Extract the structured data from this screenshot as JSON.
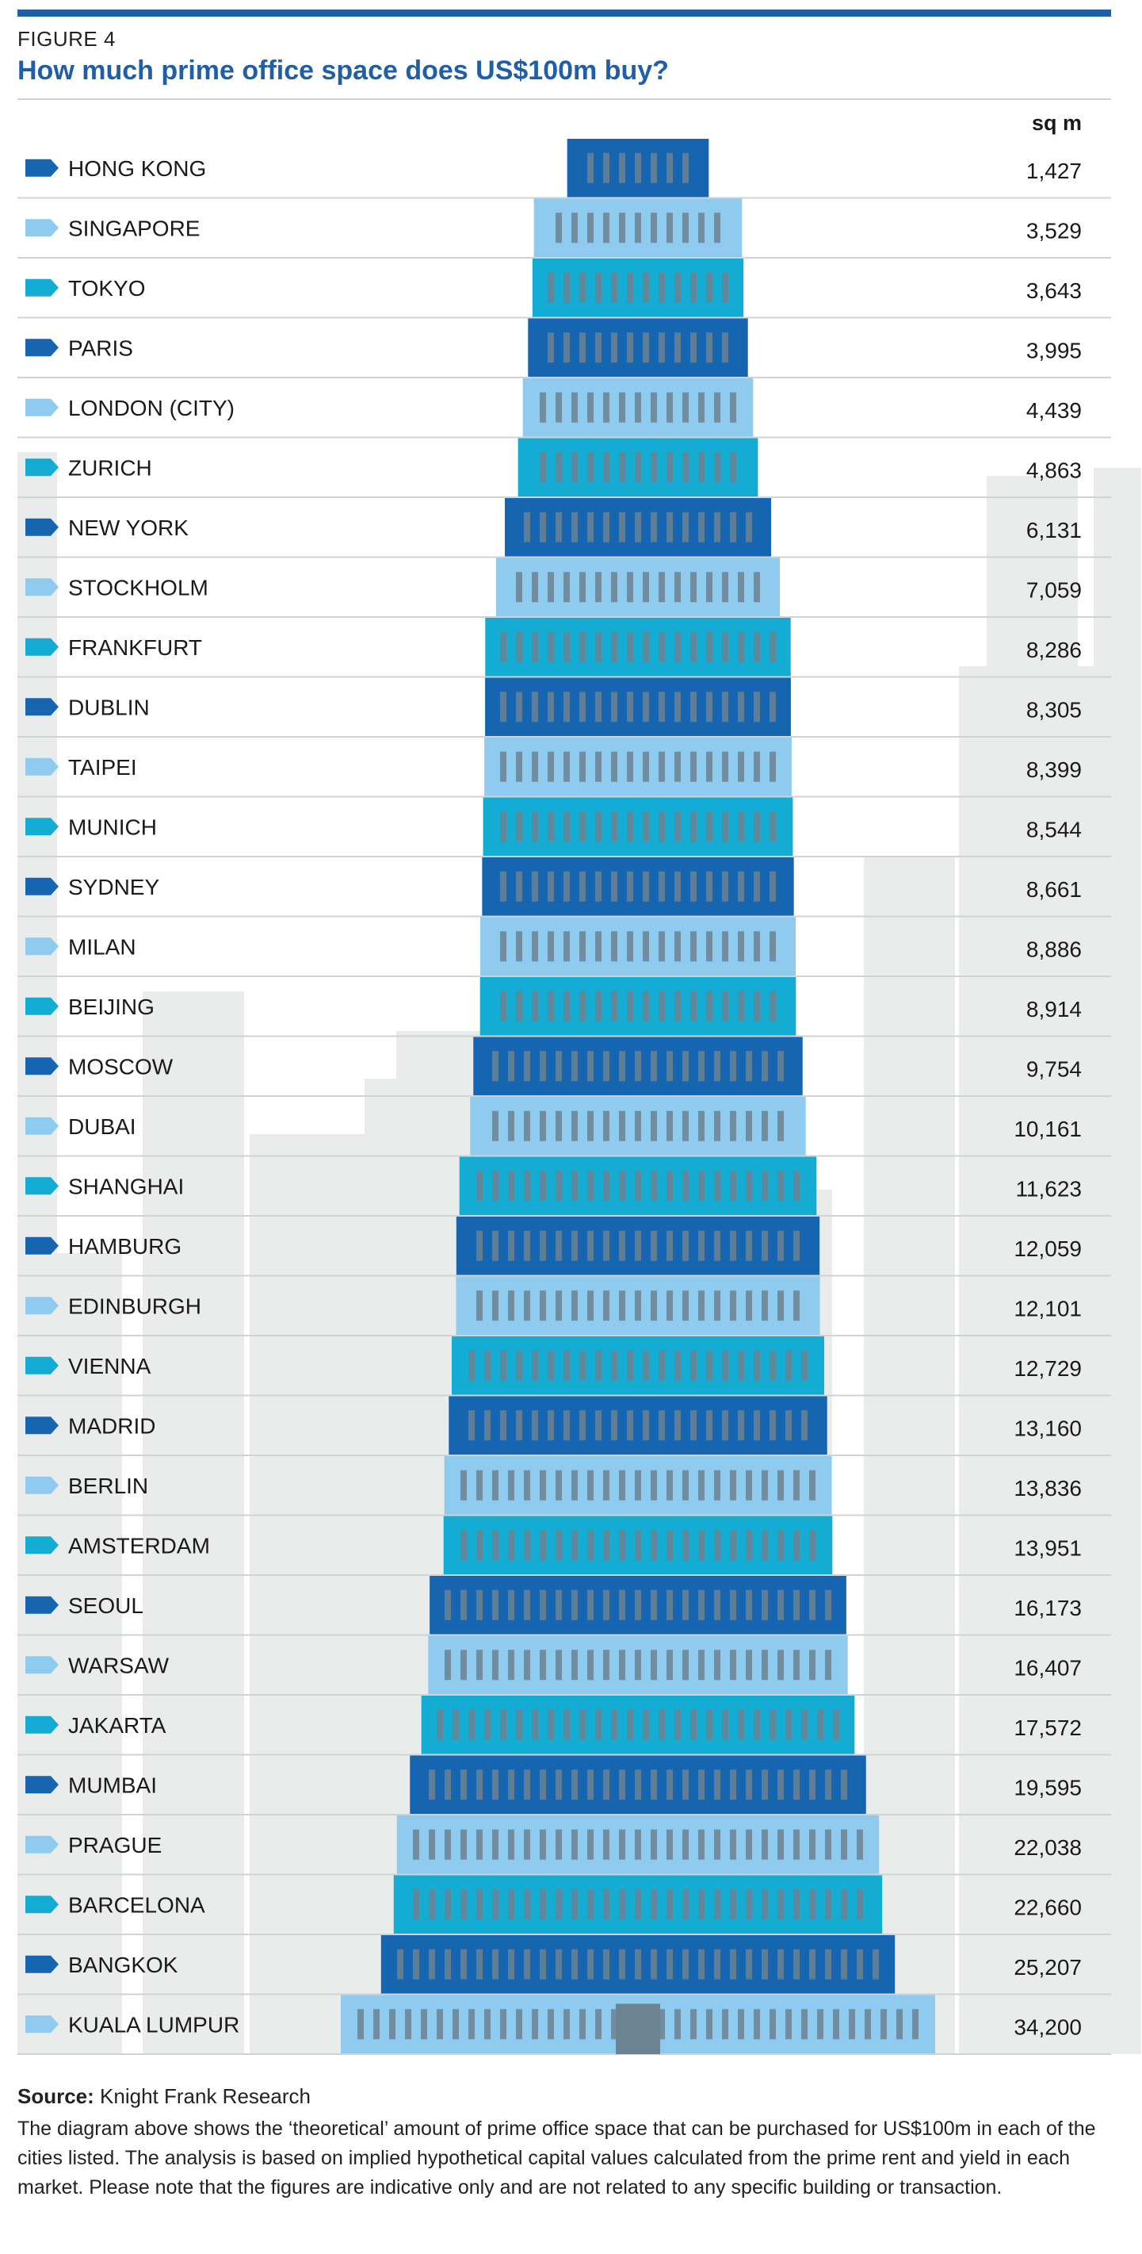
{
  "figure_label": "FIGURE 4",
  "title": "How much prime office space does US$100m buy?",
  "unit_label": "sq m",
  "source_label": "Source:",
  "source_text": "Knight Frank Research",
  "note": "The diagram above shows the ‘theoretical’ amount of prime office space that can be purchased for US$100m in each of the cities listed. The analysis is based on implied hypothetical capital values calculated from the prime rent and yield in each market. Please note that the figures are indicative only and are not related to any specific building or transaction.",
  "colors": {
    "dark": "#1565b0",
    "light": "#8ecbef",
    "cyan": "#14acd3",
    "window": "#6c8391",
    "skyline": "#e9ecea",
    "rule": "#cfd3d6",
    "title": "#1f5fa8"
  },
  "chart_data": {
    "type": "bar",
    "orientation": "horizontal-centered",
    "unit": "sq m",
    "categories": [
      "HONG KONG",
      "SINGAPORE",
      "TOKYO",
      "PARIS",
      "LONDON (CITY)",
      "ZURICH",
      "NEW YORK",
      "STOCKHOLM",
      "FRANKFURT",
      "DUBLIN",
      "TAIPEI",
      "MUNICH",
      "SYDNEY",
      "MILAN",
      "BEIJING",
      "MOSCOW",
      "DUBAI",
      "SHANGHAI",
      "HAMBURG",
      "EDINBURGH",
      "VIENNA",
      "MADRID",
      "BERLIN",
      "AMSTERDAM",
      "SEOUL",
      "WARSAW",
      "JAKARTA",
      "MUMBAI",
      "PRAGUE",
      "BARCELONA",
      "BANGKOK",
      "KUALA LUMPUR"
    ],
    "values": [
      1427,
      3529,
      3643,
      3995,
      4439,
      4863,
      6131,
      7059,
      8286,
      8305,
      8399,
      8544,
      8661,
      8886,
      8914,
      9754,
      10161,
      11623,
      12059,
      12101,
      12729,
      13160,
      13836,
      13951,
      16173,
      16407,
      17572,
      19595,
      22038,
      22660,
      25207,
      34200
    ],
    "labels": [
      "1,427",
      "3,529",
      "3,643",
      "3,995",
      "4,439",
      "4,863",
      "6,131",
      "7,059",
      "8,286",
      "8,305",
      "8,399",
      "8,544",
      "8,661",
      "8,886",
      "8,914",
      "9,754",
      "10,161",
      "11,623",
      "12,059",
      "12,101",
      "12,729",
      "13,160",
      "13,836",
      "13,951",
      "16,173",
      "16,407",
      "17,572",
      "19,595",
      "22,038",
      "22,660",
      "25,207",
      "34,200"
    ],
    "color_cycle": [
      "dark",
      "light",
      "cyan"
    ],
    "xlim": [
      0,
      34200
    ],
    "grid": false,
    "legend": "none"
  }
}
